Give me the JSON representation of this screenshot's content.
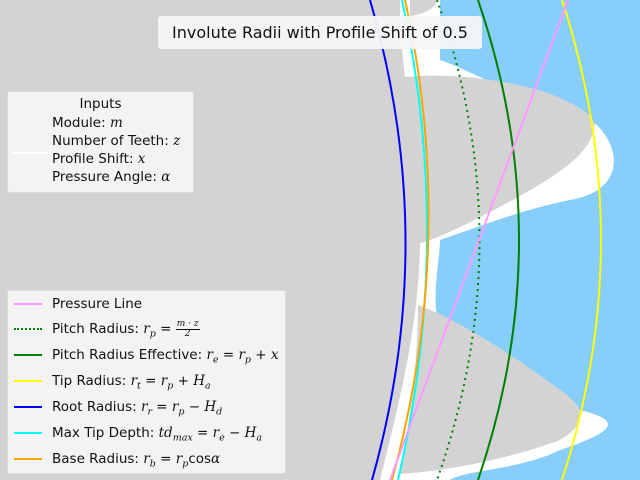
{
  "title": "Involute Radii with Profile Shift of 0.5",
  "colors": {
    "background": "#d3d3d3",
    "gear_fill": "#87cefa",
    "tooth_gap": "#ffffff",
    "pressure_line": "#ff99ff",
    "pitch_radius": "#008000",
    "pitch_radius_effective": "#008000",
    "tip_radius": "#ffff00",
    "root_radius": "#0000ff",
    "max_tip_depth": "#00ffff",
    "base_radius": "#ffa500"
  },
  "inputs_legend": {
    "title": "Inputs",
    "items": [
      {
        "label": "Module: ",
        "symbol": "m"
      },
      {
        "label": "Number of Teeth: ",
        "symbol": "z"
      },
      {
        "label": "Profile Shift: ",
        "symbol": "x"
      },
      {
        "label": "Pressure Angle: ",
        "symbol": "α"
      }
    ]
  },
  "lines_legend": {
    "pressure": {
      "label": "Pressure Line"
    },
    "pitch": {
      "label": "Pitch Radius: ",
      "lhs": "r",
      "sub": "p",
      "num": "m · z",
      "den": "2"
    },
    "effective": {
      "label": "Pitch Radius Effective: ",
      "lhs": "r",
      "sub": "e",
      "rhs1": "r",
      "rhs1_sub": "p",
      "rhs2": "x"
    },
    "tip": {
      "label": "Tip Radius: ",
      "lhs": "r",
      "sub": "t",
      "rhs1": "r",
      "rhs1_sub": "p",
      "rhs2": "H",
      "rhs2_sub": "a"
    },
    "root": {
      "label": "Root Radius: ",
      "lhs": "r",
      "sub": "r",
      "rhs1": "r",
      "rhs1_sub": "p",
      "rhs2": "H",
      "rhs2_sub": "d"
    },
    "maxtip": {
      "label": "Max Tip Depth: ",
      "lhs": "td",
      "sub": "max",
      "rhs1": "r",
      "rhs1_sub": "e",
      "rhs2": "H",
      "rhs2_sub": "a"
    },
    "base": {
      "label": "Base Radius: ",
      "lhs": "r",
      "sub": "b",
      "rhs1": "r",
      "rhs1_sub": "p",
      "fn": "cos",
      "fn_arg": "α"
    }
  }
}
